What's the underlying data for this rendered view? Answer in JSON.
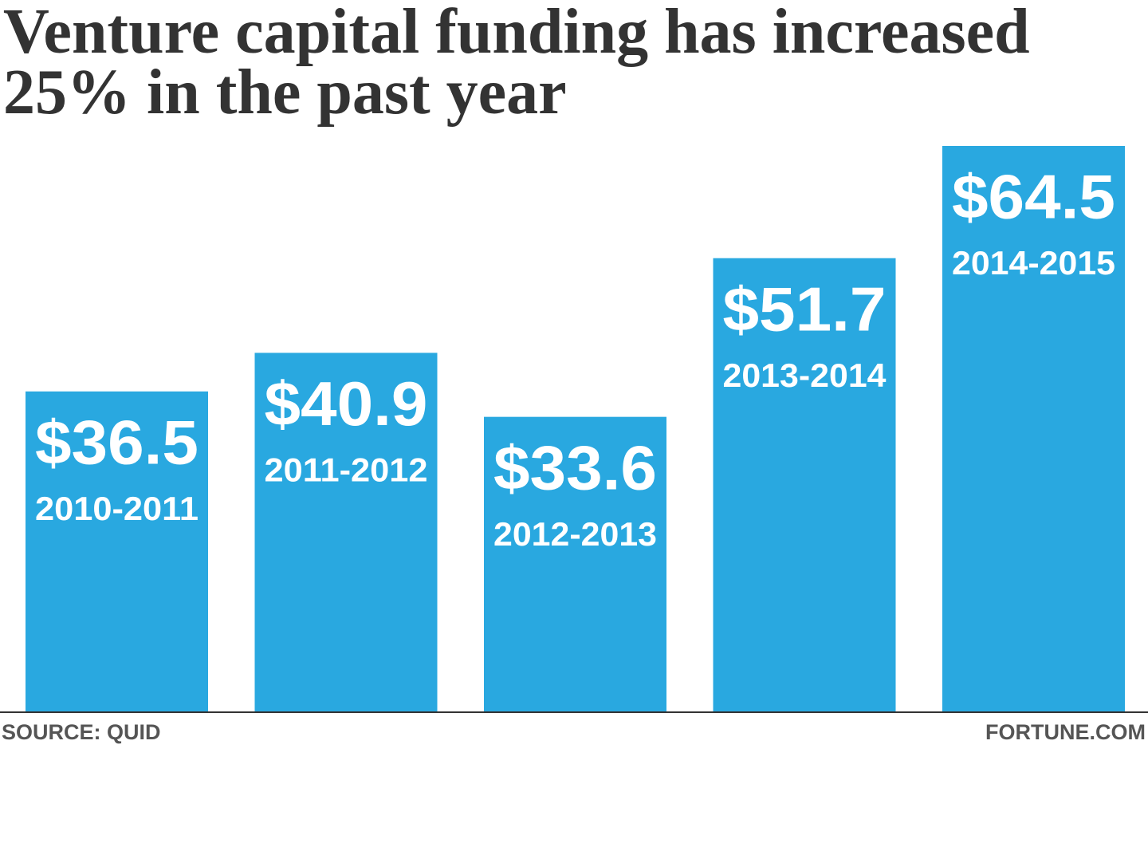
{
  "chart_data": {
    "type": "bar",
    "title": "Venture capital funding has increased 25% in the past year",
    "categories": [
      "2010-2011",
      "2011-2012",
      "2012-2013",
      "2013-2014",
      "2014-2015"
    ],
    "values": [
      36.5,
      40.9,
      33.6,
      51.7,
      64.5
    ],
    "value_labels": [
      "$36.5",
      "$40.9",
      "$33.6",
      "$51.7",
      "$64.5"
    ],
    "color": "#29a8e0",
    "source": "SOURCE: QUID",
    "credit": "FORTUNE.COM"
  }
}
